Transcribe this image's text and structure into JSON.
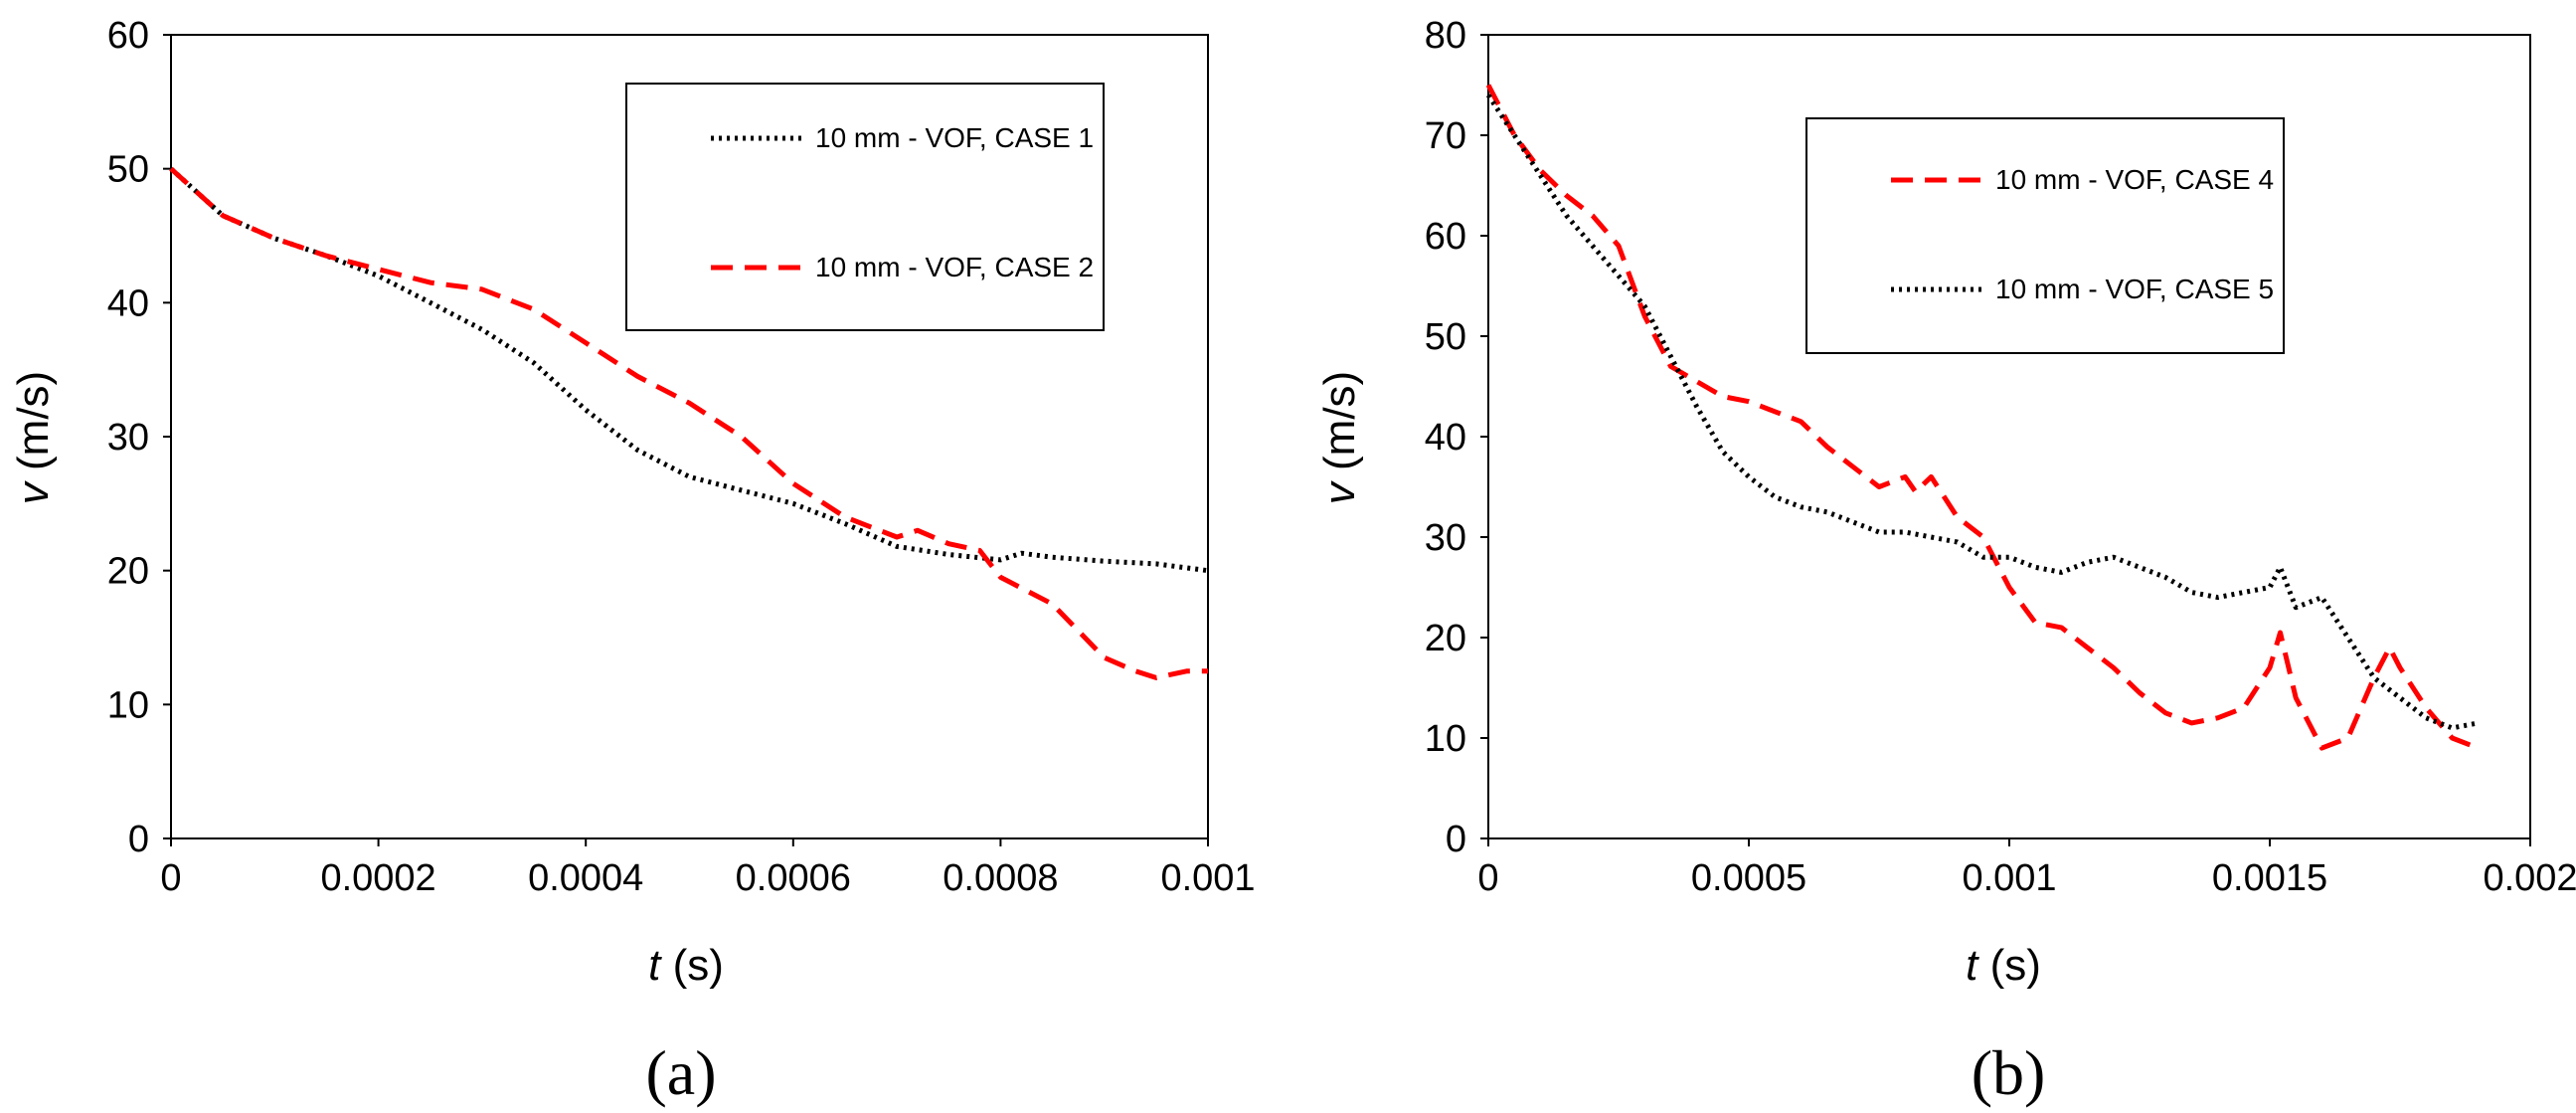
{
  "chart_data": [
    {
      "type": "line",
      "panel": "(a)",
      "xlabel_var": "t",
      "xlabel_unit": " (s)",
      "ylabel_var": "v",
      "ylabel_unit": " (m/s)",
      "xlim": [
        0,
        0.001
      ],
      "ylim": [
        0,
        60
      ],
      "xticks": [
        0,
        0.0002,
        0.0004,
        0.0006,
        0.0008,
        0.001
      ],
      "xtick_labels": [
        "0",
        "0.0002",
        "0.0004",
        "0.0006",
        "0.0008",
        "0.001"
      ],
      "yticks": [
        0,
        10,
        20,
        30,
        40,
        50,
        60
      ],
      "ytick_labels": [
        "0",
        "10",
        "20",
        "30",
        "40",
        "50",
        "60"
      ],
      "legend_position": "top-right",
      "series": [
        {
          "name": "10 mm - VOF, CASE 1",
          "color": "#000000",
          "style": "dotted",
          "x": [
            0,
            5e-05,
            0.0001,
            0.00015,
            0.0002,
            0.00025,
            0.0003,
            0.00035,
            0.0004,
            0.00045,
            0.0005,
            0.00055,
            0.0006,
            0.00065,
            0.0007,
            0.00075,
            0.0008,
            0.00082,
            0.00085,
            0.0009,
            0.00095,
            0.001
          ],
          "values": [
            50,
            46.5,
            44.8,
            43.5,
            42,
            40,
            38,
            35.5,
            32,
            29,
            27,
            26,
            25,
            23.5,
            21.8,
            21.2,
            20.8,
            21.3,
            21,
            20.7,
            20.5,
            20
          ]
        },
        {
          "name": "10 mm - VOF, CASE 2",
          "color": "#ff0000",
          "style": "dashed",
          "x": [
            0,
            5e-05,
            0.0001,
            0.00015,
            0.0002,
            0.00025,
            0.0003,
            0.00035,
            0.0004,
            0.00045,
            0.0005,
            0.00055,
            0.0006,
            0.00065,
            0.0007,
            0.00072,
            0.00075,
            0.00078,
            0.0008,
            0.00085,
            0.0009,
            0.00093,
            0.00095,
            0.00098,
            0.001
          ],
          "values": [
            50,
            46.5,
            44.8,
            43.5,
            42.5,
            41.5,
            41,
            39.5,
            37,
            34.5,
            32.5,
            30,
            26.5,
            24,
            22.5,
            23,
            22,
            21.5,
            19.5,
            17.5,
            13.5,
            12.5,
            12,
            12.5,
            12.5
          ]
        }
      ]
    },
    {
      "type": "line",
      "panel": "(b)",
      "xlabel_var": "t",
      "xlabel_unit": " (s)",
      "ylabel_var": "v",
      "ylabel_unit": " (m/s)",
      "xlim": [
        0,
        0.002
      ],
      "ylim": [
        0,
        80
      ],
      "xticks": [
        0,
        0.0005,
        0.001,
        0.0015,
        0.002
      ],
      "xtick_labels": [
        "0",
        "0.0005",
        "0.001",
        "0.0015",
        "0.002"
      ],
      "yticks": [
        0,
        10,
        20,
        30,
        40,
        50,
        60,
        70,
        80
      ],
      "ytick_labels": [
        "0",
        "10",
        "20",
        "30",
        "40",
        "50",
        "60",
        "70",
        "80"
      ],
      "legend_position": "top-right",
      "series": [
        {
          "name": "10 mm - VOF, CASE 4",
          "color": "#ff0000",
          "style": "dashed",
          "x": [
            0,
            5e-05,
            0.0001,
            0.00015,
            0.0002,
            0.00025,
            0.0003,
            0.00035,
            0.0004,
            0.00045,
            0.0005,
            0.00055,
            0.0006,
            0.00065,
            0.0007,
            0.00075,
            0.0008,
            0.00082,
            0.00085,
            0.0009,
            0.00095,
            0.001,
            0.00105,
            0.0011,
            0.00115,
            0.0012,
            0.00125,
            0.0013,
            0.00135,
            0.0014,
            0.00145,
            0.0015,
            0.00152,
            0.00155,
            0.0016,
            0.00165,
            0.0017,
            0.00173,
            0.00175,
            0.0018,
            0.00185,
            0.0019
          ],
          "values": [
            75,
            70,
            66.5,
            64,
            62,
            59,
            52,
            47,
            45.5,
            44,
            43.5,
            42.5,
            41.5,
            39,
            37,
            35,
            36,
            34.5,
            36,
            32,
            30,
            25,
            21.5,
            21,
            19,
            17,
            14.5,
            12.5,
            11.5,
            12,
            13,
            17,
            20.5,
            14,
            9,
            10,
            16,
            19,
            17,
            13,
            10,
            9
          ]
        },
        {
          "name": "10 mm - VOF, CASE 5",
          "color": "#000000",
          "style": "dotted",
          "x": [
            0,
            5e-05,
            0.0001,
            0.00015,
            0.0002,
            0.00025,
            0.0003,
            0.00035,
            0.0004,
            0.00045,
            0.0005,
            0.00055,
            0.0006,
            0.00065,
            0.0007,
            0.00075,
            0.0008,
            0.00085,
            0.0009,
            0.00095,
            0.001,
            0.00105,
            0.0011,
            0.00115,
            0.0012,
            0.00125,
            0.0013,
            0.00135,
            0.0014,
            0.00145,
            0.0015,
            0.00152,
            0.00155,
            0.0016,
            0.00165,
            0.0017,
            0.00175,
            0.0018,
            0.00185,
            0.0019
          ],
          "values": [
            74,
            70,
            66,
            62,
            59,
            56,
            53,
            48,
            43,
            38.5,
            36,
            34,
            33,
            32.5,
            31.5,
            30.5,
            30.5,
            30,
            29.5,
            28,
            28,
            27,
            26.5,
            27.5,
            28,
            27,
            26,
            24.5,
            24,
            24.5,
            25,
            27,
            23,
            24,
            20,
            16,
            14,
            12,
            11,
            11.5
          ]
        }
      ]
    }
  ]
}
